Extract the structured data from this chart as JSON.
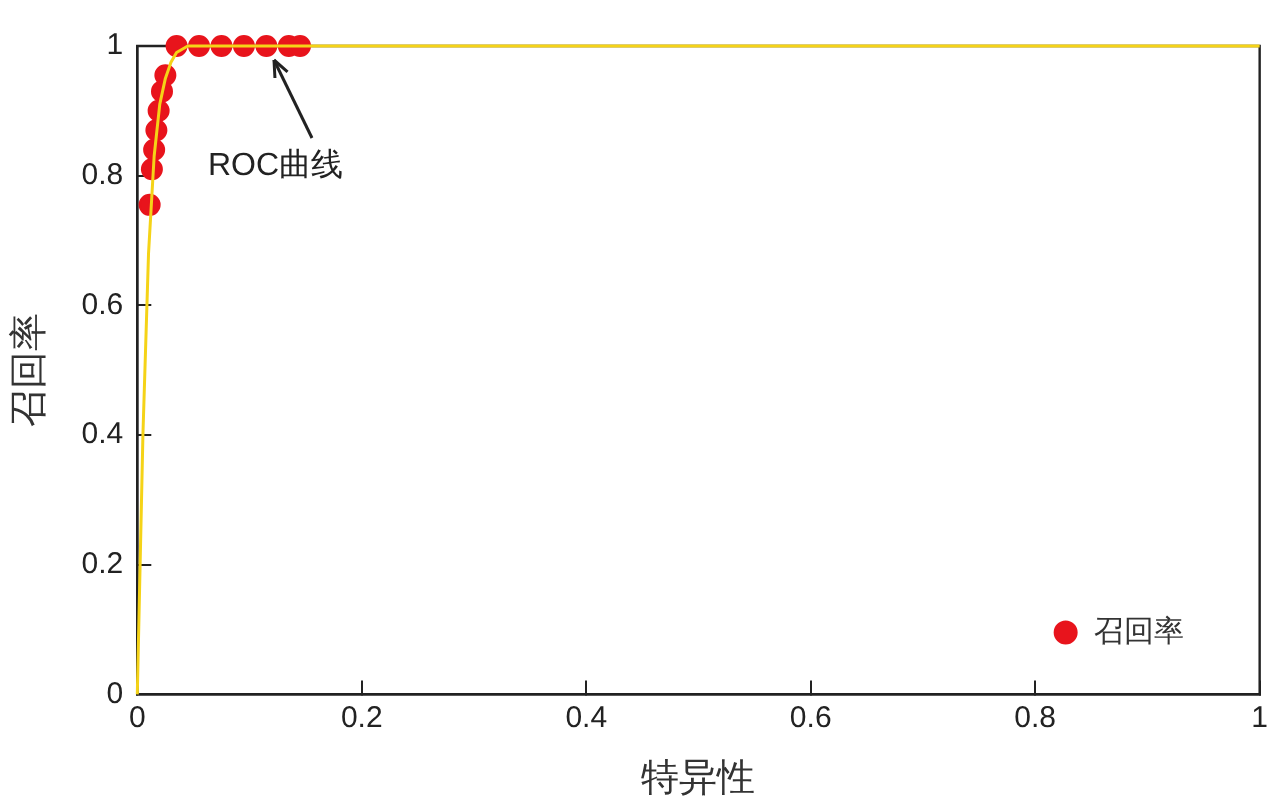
{
  "chart_data": {
    "type": "scatter",
    "xlabel": "特异性",
    "ylabel": "召回率",
    "xlim": [
      0,
      1
    ],
    "ylim": [
      0,
      1
    ],
    "xticks": [
      0,
      0.2,
      0.4,
      0.6,
      0.8,
      1
    ],
    "yticks": [
      0,
      0.2,
      0.4,
      0.6,
      0.8,
      1
    ],
    "grid": false,
    "legend": "bottom right",
    "marker": "circle",
    "annotations": [
      {
        "text": "ROC曲线",
        "x": 0.12,
        "y": 1
      }
    ],
    "series": [
      {
        "name": "召回率",
        "type": "scatter",
        "color": "#e8141c",
        "x": [
          0.011,
          0.013,
          0.015,
          0.017,
          0.019,
          0.022,
          0.025,
          0.035,
          0.055,
          0.075,
          0.095,
          0.115,
          0.135,
          0.145
        ],
        "values": [
          0.755,
          0.81,
          0.84,
          0.87,
          0.9,
          0.93,
          0.955,
          1,
          1,
          1,
          1,
          1,
          1,
          1
        ]
      },
      {
        "type": "line",
        "color": "#f5d317",
        "marker": "none",
        "x": [
          0,
          0.005,
          0.01,
          0.015,
          0.02,
          0.025,
          0.03,
          0.035,
          0.045,
          0.06,
          1
        ],
        "values": [
          0,
          0.4,
          0.68,
          0.83,
          0.91,
          0.95,
          0.975,
          0.99,
          1,
          1,
          1
        ]
      }
    ]
  }
}
